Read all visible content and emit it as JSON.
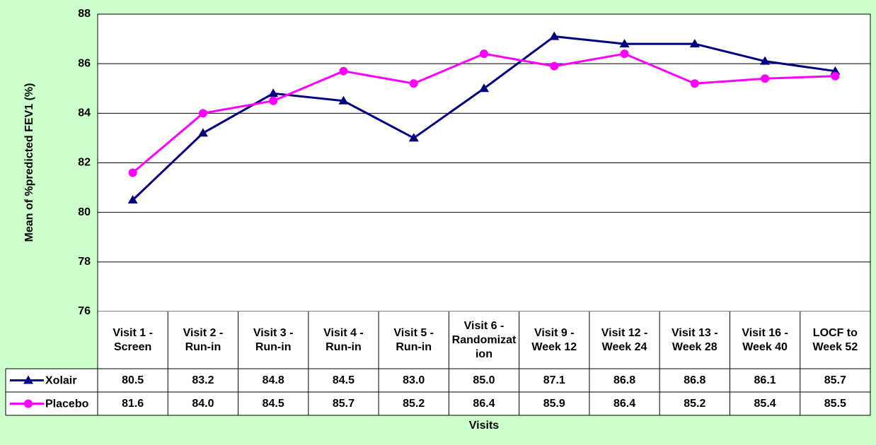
{
  "chart_data": {
    "type": "line",
    "y_label": "Mean of %predicted FEV1 (%)",
    "x_label": "Visits",
    "categories": [
      "Visit 1 - Screen",
      "Visit 2 - Run-in",
      "Visit 3 - Run-in",
      "Visit 4 - Run-in",
      "Visit 5 - Run-in",
      "Visit 6 - Randomization",
      "Visit 9 - Week 12",
      "Visit 12 - Week 24",
      "Visit 13 - Week 28",
      "Visit 16 - Week 40",
      "LOCF to Week 52"
    ],
    "series": [
      {
        "name": "Xolair",
        "color": "#000080",
        "marker": "triangle",
        "values": [
          80.5,
          83.2,
          84.8,
          84.5,
          83.0,
          85.0,
          87.1,
          86.8,
          86.8,
          86.1,
          85.7
        ],
        "value_labels": [
          "80.5",
          "83.2",
          "84.8",
          "84.5",
          "83.0",
          "85.0",
          "87.1",
          "86.8",
          "86.8",
          "86.1",
          "85.7"
        ]
      },
      {
        "name": "Placebo",
        "color": "#ff00ff",
        "marker": "circle",
        "values": [
          81.6,
          84.0,
          84.5,
          85.7,
          85.2,
          86.4,
          85.9,
          86.4,
          85.2,
          85.4,
          85.5
        ],
        "value_labels": [
          "81.6",
          "84.0",
          "84.5",
          "85.7",
          "85.2",
          "86.4",
          "85.9",
          "86.4",
          "85.2",
          "85.4",
          "85.5"
        ]
      }
    ],
    "ylim": [
      76,
      88
    ],
    "yticks": [
      76,
      78,
      80,
      82,
      84,
      86,
      88
    ],
    "grid": true
  }
}
